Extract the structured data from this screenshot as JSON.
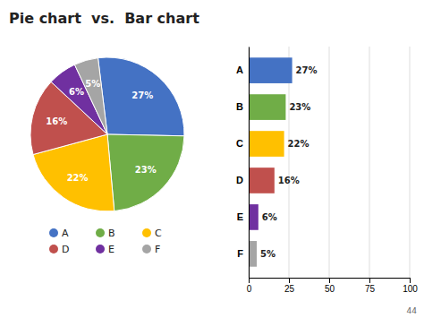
{
  "chart_data": [
    {
      "type": "pie",
      "title": "Pie chart  vs.  Bar chart",
      "annotations": [
        "44"
      ],
      "categories": [
        "A",
        "B",
        "C",
        "D",
        "E",
        "F"
      ],
      "values": [
        27,
        23,
        22,
        16,
        6,
        5
      ],
      "value_labels": [
        "27%",
        "23%",
        "22%",
        "16%",
        "6%",
        "5%"
      ],
      "colors": [
        "#4472c4",
        "#70ad47",
        "#ffc000",
        "#c0504d",
        "#7030a0",
        "#a5a5a5"
      ],
      "data_labels": true,
      "legend": "bottom"
    },
    {
      "type": "bar",
      "orientation": "horizontal",
      "categories": [
        "A",
        "B",
        "C",
        "D",
        "E",
        "F"
      ],
      "values": [
        27,
        23,
        22,
        16,
        6,
        5
      ],
      "value_labels": [
        "27%",
        "23%",
        "22%",
        "16%",
        "6%",
        "5%"
      ],
      "colors": [
        "#4472c4",
        "#70ad47",
        "#ffc000",
        "#c0504d",
        "#7030a0",
        "#a5a5a5"
      ],
      "xlim": [
        0,
        100
      ],
      "xticks": [
        0,
        25,
        50,
        75,
        100
      ],
      "grid": true,
      "data_labels": true
    }
  ]
}
